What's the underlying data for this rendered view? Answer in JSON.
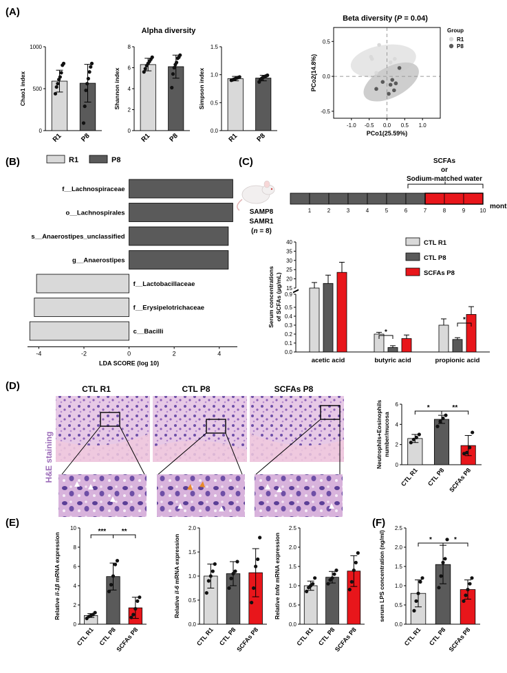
{
  "colors": {
    "r1": "#d9d9d9",
    "p8": "#5a5a5a",
    "scfa": "#e8161b",
    "stain": "#9b6bb8",
    "ellipse_r1": "#e6e6e6",
    "ellipse_p8": "#c9c9c9"
  },
  "panels": {
    "A": "(A)",
    "B": "(B)",
    "C": "(C)",
    "D": "(D)",
    "E": "(E)",
    "F": "(F)"
  },
  "chart_data": [
    {
      "id": "chao1",
      "type": "bar",
      "panel": "A",
      "title": "Alpha diversity",
      "ylabel": "Chao1 index",
      "categories": [
        "R1",
        "P8"
      ],
      "values": [
        590,
        565
      ],
      "errors": [
        130,
        225
      ],
      "ylim": [
        0,
        1000
      ],
      "yticks": [
        "0",
        "500",
        "1000"
      ],
      "ytick_values": [
        0,
        500,
        1000
      ],
      "colors": [
        "r1",
        "p8"
      ],
      "points": [
        [
          440,
          520,
          560,
          610,
          640,
          690,
          780,
          800
        ],
        [
          90,
          290,
          480,
          560,
          620,
          700,
          760,
          800
        ]
      ]
    },
    {
      "id": "shannon",
      "type": "bar",
      "panel": "A",
      "ylabel": "Shannon index",
      "categories": [
        "R1",
        "P8"
      ],
      "values": [
        6.3,
        6.1
      ],
      "errors": [
        0.6,
        1.1
      ],
      "ylim": [
        0,
        8
      ],
      "yticks": [
        "0",
        "2",
        "4",
        "6",
        "8"
      ],
      "ytick_values": [
        0,
        2,
        4,
        6,
        8
      ],
      "colors": [
        "r1",
        "p8"
      ],
      "points": [
        [
          5.6,
          5.9,
          6.2,
          6.4,
          6.6,
          6.8,
          7.0
        ],
        [
          4.1,
          5.4,
          6.0,
          6.3,
          6.5,
          6.9,
          7.0,
          7.2
        ]
      ]
    },
    {
      "id": "simpson",
      "type": "bar",
      "panel": "A",
      "ylabel": "Simpson index",
      "categories": [
        "R1",
        "P8"
      ],
      "values": [
        0.93,
        0.94
      ],
      "errors": [
        0.04,
        0.05
      ],
      "ylim": [
        0,
        1.5
      ],
      "yticks": [
        "0.0",
        "0.5",
        "1.0",
        "1.5"
      ],
      "ytick_values": [
        0,
        0.5,
        1.0,
        1.5
      ],
      "colors": [
        "r1",
        "p8"
      ],
      "points": [
        [
          0.9,
          0.91,
          0.92,
          0.93,
          0.94,
          0.95,
          0.96
        ],
        [
          0.87,
          0.91,
          0.93,
          0.95,
          0.96,
          0.97,
          0.98,
          0.99
        ]
      ]
    },
    {
      "id": "beta",
      "type": "scatter",
      "panel": "A",
      "title": "Beta diversity (P = 0.04)",
      "title_main": "Beta diversity (",
      "title_italic": "P",
      "title_rest": " = 0.04)",
      "xlabel": "PCo1(25.59%)",
      "ylabel": "PCo2(14.8%)",
      "xlim": [
        -1.5,
        1.5
      ],
      "ylim": [
        -0.6,
        0.7
      ],
      "xticks": [
        "-1.0",
        "-0.5",
        "0.0",
        "0.5",
        "1.0"
      ],
      "xtick_values": [
        -1.0,
        -0.5,
        0.0,
        0.5,
        1.0
      ],
      "yticks": [
        "-0.5",
        "0.0",
        "0.5"
      ],
      "ytick_values": [
        -0.5,
        0.0,
        0.5
      ],
      "legend_title": "Group",
      "series": [
        {
          "name": "R1",
          "color": "r1",
          "x": [
            -0.42,
            -0.3,
            0.22,
            0.1,
            -0.22,
            -0.45
          ],
          "y": [
            0.25,
            0.05,
            0.25,
            0.2,
            0.45,
            0.28
          ]
        },
        {
          "name": "P8",
          "color": "p8",
          "x": [
            -0.3,
            -0.12,
            0.1,
            0.2,
            0.35,
            0.25,
            0.05,
            0.15
          ],
          "y": [
            -0.18,
            -0.08,
            -0.12,
            -0.2,
            0.12,
            -0.1,
            -0.25,
            -0.05
          ]
        }
      ]
    },
    {
      "id": "lda",
      "type": "bar",
      "panel": "B",
      "orientation": "horizontal",
      "xlabel": "LDA SCORE (log 10)",
      "xlim": [
        -4.5,
        4.8
      ],
      "xticks": [
        "-4",
        "-2",
        "0",
        "2",
        "4"
      ],
      "xtick_values": [
        -4,
        -2,
        0,
        2,
        4
      ],
      "legend": [
        "R1",
        "P8"
      ],
      "categories": [
        "f__Lachnospiraceae",
        "o__Lachnospirales",
        "s__Anaerostipes_unclassified",
        "g__Anaerostipes",
        "f__Lactobacillaceae",
        "f__Erysipelotrichaceae",
        "c__Bacilli"
      ],
      "values": [
        4.6,
        4.6,
        4.4,
        4.4,
        -4.1,
        -4.2,
        -4.4
      ],
      "groups": [
        "P8",
        "P8",
        "P8",
        "P8",
        "R1",
        "R1",
        "R1"
      ]
    },
    {
      "id": "scfa_serum",
      "type": "bar",
      "panel": "C",
      "ylabel": "Serum concentrations of SCFAs (μg/mL)",
      "ylabel_lines": [
        "Serum concentrations",
        "of SCFAs (μg/mL)"
      ],
      "categories": [
        "acetic acid",
        "butyric acid",
        "propionic acid"
      ],
      "series": [
        {
          "name": "CTL R1",
          "color": "r1",
          "values": [
            14,
            0.2,
            0.3
          ],
          "errors": [
            4,
            0.02,
            0.07
          ]
        },
        {
          "name": "CTL P8",
          "color": "p8",
          "values": [
            17.5,
            0.05,
            0.14
          ],
          "errors": [
            4.5,
            0.02,
            0.02
          ]
        },
        {
          "name": "SCFAs P8",
          "color": "scfa",
          "values": [
            23.5,
            0.15,
            0.42
          ],
          "errors": [
            5.5,
            0.04,
            0.1
          ]
        }
      ],
      "upper_yticks": [
        "15",
        "20",
        "25",
        "30",
        "35",
        "40"
      ],
      "upper_ytick_values": [
        15,
        20,
        25,
        30,
        35,
        40
      ],
      "lower_yticks": [
        "0.0",
        "0.1",
        "0.2",
        "0.3",
        "0.4",
        "0.5",
        "0.9"
      ],
      "lower_ytick_values": [
        0,
        0.1,
        0.2,
        0.3,
        0.4,
        0.5,
        0.9
      ],
      "significance": [
        {
          "category": "butyric acid",
          "label": "*"
        },
        {
          "category": "propionic acid",
          "label": "*"
        }
      ]
    },
    {
      "id": "neutrophils",
      "type": "bar",
      "panel": "D",
      "ylabel": "Neutrophils+Eosinophils number/mucosa",
      "ylabel_lines": [
        "Neutrophils+Eosinophils",
        "number/mucosa"
      ],
      "categories": [
        "CTL R1",
        "CTL P8",
        "SCFAs P8"
      ],
      "values": [
        2.6,
        4.5,
        1.9
      ],
      "errors": [
        0.4,
        0.4,
        1.0
      ],
      "ylim": [
        0,
        6
      ],
      "yticks": [
        "0",
        "2",
        "4",
        "6"
      ],
      "ytick_values": [
        0,
        2,
        4,
        6
      ],
      "colors": [
        "r1",
        "p8",
        "scfa"
      ],
      "points": [
        [
          2.2,
          2.5,
          2.7,
          3.0
        ],
        [
          3.8,
          4.3,
          4.6,
          4.9
        ],
        [
          1.1,
          1.2,
          1.7,
          3.2
        ]
      ],
      "significance": [
        {
          "from": 0,
          "to": 1,
          "label": "*"
        },
        {
          "from": 1,
          "to": 2,
          "label": "**"
        }
      ]
    },
    {
      "id": "il1b",
      "type": "bar",
      "panel": "E",
      "ylabel_prefix": "Relative ",
      "ylabel_gene": "il-1β",
      "ylabel_suffix": " mRNA expression",
      "categories": [
        "CTL R1",
        "CTL P8",
        "SCFAs P8"
      ],
      "values": [
        0.9,
        4.95,
        1.7
      ],
      "errors": [
        0.2,
        1.4,
        1.1
      ],
      "ylim": [
        0,
        10
      ],
      "yticks": [
        "0",
        "2",
        "4",
        "6",
        "8",
        "10"
      ],
      "ytick_values": [
        0,
        2,
        4,
        6,
        8,
        10
      ],
      "colors": [
        "r1",
        "p8",
        "scfa"
      ],
      "points": [
        [
          0.6,
          0.8,
          0.9,
          1.0,
          1.2
        ],
        [
          3.4,
          4.1,
          5.0,
          6.2,
          6.6
        ],
        [
          0.7,
          1.0,
          1.6,
          2.4,
          2.8
        ]
      ],
      "significance": [
        {
          "from": 0,
          "to": 1,
          "label": "***"
        },
        {
          "from": 1,
          "to": 2,
          "label": "**"
        }
      ]
    },
    {
      "id": "il6",
      "type": "bar",
      "panel": "E",
      "ylabel_prefix": "Relative ",
      "ylabel_gene": "il-6",
      "ylabel_suffix": " mRNA expression",
      "categories": [
        "CTL R1",
        "CTL P8",
        "SCFAs P8"
      ],
      "values": [
        1.0,
        1.05,
        1.07
      ],
      "errors": [
        0.25,
        0.25,
        0.5
      ],
      "ylim": [
        0,
        2.0
      ],
      "yticks": [
        "0.0",
        "0.5",
        "1.0",
        "1.5",
        "2.0"
      ],
      "ytick_values": [
        0,
        0.5,
        1.0,
        1.5,
        2.0
      ],
      "colors": [
        "r1",
        "p8",
        "scfa"
      ],
      "points": [
        [
          0.65,
          0.9,
          1.0,
          1.1,
          1.25
        ],
        [
          0.75,
          0.95,
          1.05,
          1.1,
          1.3
        ],
        [
          0.45,
          0.75,
          1.2,
          1.35,
          1.8
        ]
      ]
    },
    {
      "id": "tnfa",
      "type": "bar",
      "panel": "E",
      "ylabel_prefix": "Relative ",
      "ylabel_gene": "tnfα",
      "ylabel_suffix": " mRNA expression",
      "categories": [
        "CTL R1",
        "CTL P8",
        "SCFAs P8"
      ],
      "values": [
        1.0,
        1.22,
        1.38
      ],
      "errors": [
        0.12,
        0.15,
        0.4
      ],
      "ylim": [
        0,
        2.5
      ],
      "yticks": [
        "0.0",
        "0.5",
        "1.0",
        "1.5",
        "2.0",
        "2.5"
      ],
      "ytick_values": [
        0,
        0.5,
        1.0,
        1.5,
        2.0,
        2.5
      ],
      "colors": [
        "r1",
        "p8",
        "scfa"
      ],
      "points": [
        [
          0.85,
          0.95,
          1.0,
          1.05,
          1.2
        ],
        [
          1.05,
          1.15,
          1.2,
          1.3,
          1.4
        ],
        [
          0.9,
          1.1,
          1.4,
          1.6,
          1.85
        ]
      ]
    },
    {
      "id": "lps",
      "type": "bar",
      "panel": "F",
      "ylabel": "serum LPS concentration (ng/ml)",
      "categories": [
        "CTL R1",
        "CTL P8",
        "SCFAs P8"
      ],
      "values": [
        0.8,
        1.55,
        0.9
      ],
      "errors": [
        0.35,
        0.5,
        0.25
      ],
      "ylim": [
        0,
        2.5
      ],
      "yticks": [
        "0.0",
        "0.5",
        "1.0",
        "1.5",
        "2.0",
        "2.5"
      ],
      "ytick_values": [
        0,
        0.5,
        1.0,
        1.5,
        2.0,
        2.5
      ],
      "colors": [
        "r1",
        "p8",
        "scfa"
      ],
      "points": [
        [
          0.35,
          0.6,
          0.8,
          1.1,
          1.2
        ],
        [
          0.95,
          1.25,
          1.6,
          1.7,
          2.2
        ],
        [
          0.6,
          0.75,
          0.9,
          1.05,
          1.2
        ]
      ],
      "significance": [
        {
          "from": 0,
          "to": 1,
          "label": "*"
        },
        {
          "from": 1,
          "to": 2,
          "label": "*"
        }
      ]
    }
  ],
  "timeline": {
    "mouse_labels": [
      "SAMP8",
      "SAMR1"
    ],
    "n_prefix": "(",
    "n_italic": "n",
    "n_suffix": " = 8)",
    "months": [
      "1",
      "2",
      "3",
      "4",
      "5",
      "6",
      "7",
      "8",
      "9",
      "10"
    ],
    "months_label": "months",
    "treatment_lines": [
      "SCFAs",
      "or",
      "Sodium-matched water"
    ],
    "red_start_month": 7
  },
  "histology": {
    "stain_label": "H&E staining",
    "group_titles": [
      "CTL R1",
      "CTL P8",
      "SCFAs P8"
    ]
  }
}
